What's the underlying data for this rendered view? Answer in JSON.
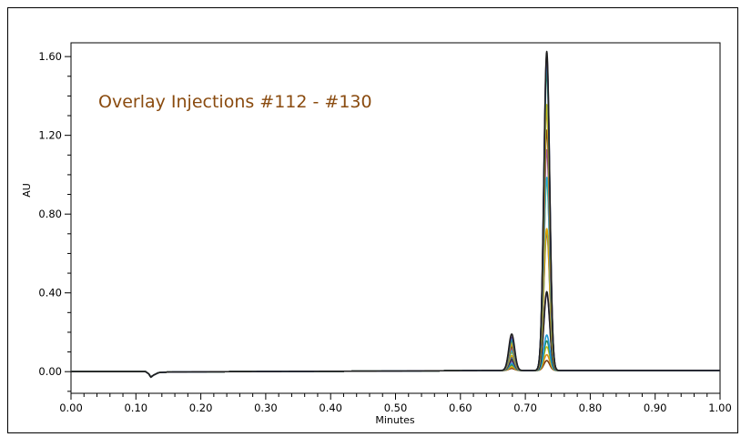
{
  "chart_data": {
    "type": "line",
    "title": "Overlay Injections #112 - #130",
    "xlabel": "Minutes",
    "ylabel": "AU",
    "xlim": [
      0.0,
      1.0
    ],
    "ylim": [
      -0.11,
      1.67
    ],
    "x_ticks": [
      "0.00",
      "0.10",
      "0.20",
      "0.30",
      "0.40",
      "0.50",
      "0.60",
      "0.70",
      "0.80",
      "0.90",
      "1.00"
    ],
    "y_ticks": [
      "0.00",
      "0.40",
      "0.80",
      "1.20",
      "1.60"
    ],
    "grid": false,
    "legend": "none",
    "colors": {
      "title": "#8a4b0f",
      "axis": "#000000",
      "palette": [
        "#1f1f1f",
        "#5a3b8c",
        "#1f9bd6",
        "#2e8b57",
        "#c9c21a",
        "#d98e1c",
        "#7a3b10",
        "#9b59b6",
        "#17becf",
        "#8db030",
        "#e0a400",
        "#3a5ba0"
      ]
    },
    "baseline": {
      "x": [
        0.0,
        0.115,
        0.12,
        0.123,
        0.127,
        0.135,
        0.15,
        0.25,
        0.5,
        0.6,
        0.65,
        1.0
      ],
      "y": [
        0.0,
        0.0,
        -0.012,
        -0.028,
        -0.018,
        -0.005,
        -0.002,
        0.0,
        0.003,
        0.005,
        0.006,
        0.006
      ]
    },
    "peaks": {
      "peak1_center": 0.679,
      "peak1_width": 0.0045,
      "peak2_center": 0.733,
      "peak2_width": 0.0045
    },
    "series": [
      {
        "peak1": 0.185,
        "peak2": 1.62
      },
      {
        "peak1": 0.17,
        "peak2": 1.6
      },
      {
        "peak1": 0.16,
        "peak2": 1.57
      },
      {
        "peak1": 0.15,
        "peak2": 1.52
      },
      {
        "peak1": 0.14,
        "peak2": 1.35
      },
      {
        "peak1": 0.13,
        "peak2": 1.32
      },
      {
        "peak1": 0.12,
        "peak2": 1.22
      },
      {
        "peak1": 0.11,
        "peak2": 1.12
      },
      {
        "peak1": 0.1,
        "peak2": 0.98
      },
      {
        "peak1": 0.09,
        "peak2": 0.97
      },
      {
        "peak1": 0.075,
        "peak2": 0.72
      },
      {
        "peak1": 0.065,
        "peak2": 0.7
      },
      {
        "peak1": 0.055,
        "peak2": 0.4
      },
      {
        "peak1": 0.045,
        "peak2": 0.39
      },
      {
        "peak1": 0.035,
        "peak2": 0.18
      },
      {
        "peak1": 0.028,
        "peak2": 0.15
      },
      {
        "peak1": 0.022,
        "peak2": 0.12
      },
      {
        "peak1": 0.016,
        "peak2": 0.08
      },
      {
        "peak1": 0.01,
        "peak2": 0.05
      }
    ]
  }
}
